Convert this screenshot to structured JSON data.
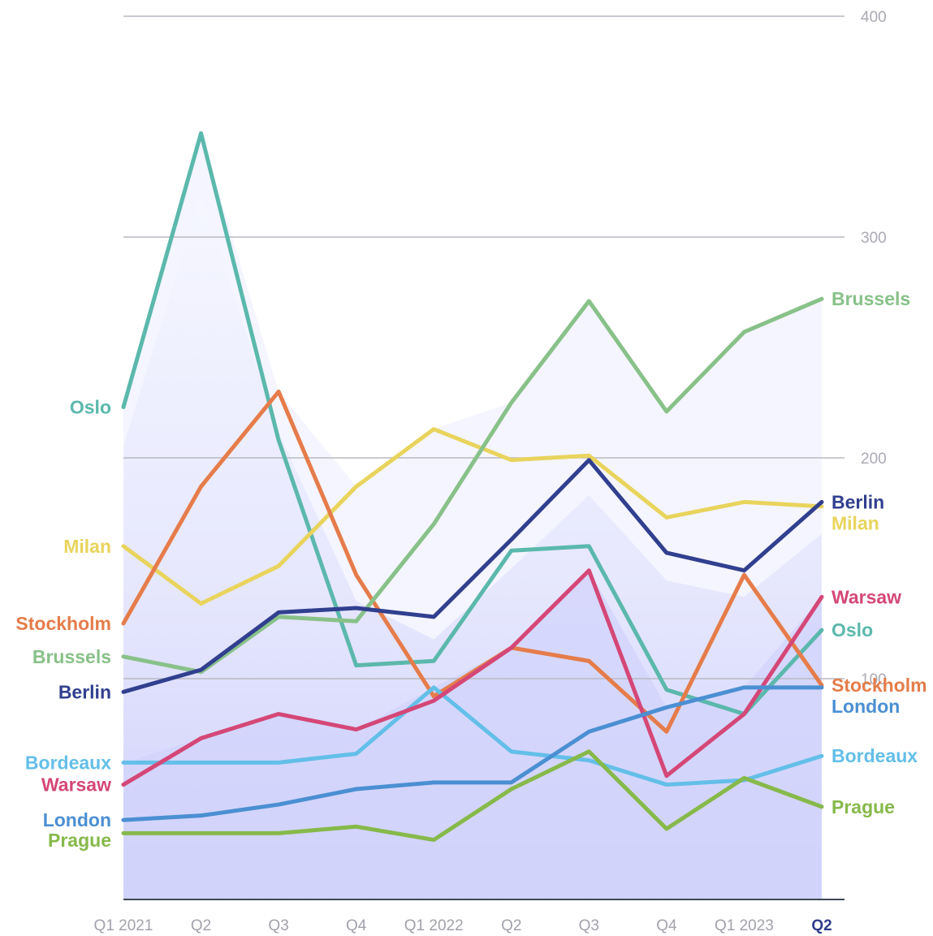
{
  "chart_data": {
    "type": "line",
    "title": "",
    "xlabel": "",
    "ylabel": "",
    "categories": [
      "Q1 2021",
      "Q2",
      "Q3",
      "Q4",
      "Q1 2022",
      "Q2",
      "Q3",
      "Q4",
      "Q1 2023",
      "Q2"
    ],
    "highlighted_category_index": 9,
    "ylim": [
      0,
      400
    ],
    "yticks": [
      "400",
      "300",
      "200",
      "100"
    ],
    "ytick_values": [
      400,
      300,
      200,
      100
    ],
    "grid": true,
    "series": [
      {
        "name": "Oslo",
        "color": "#5bb8ac",
        "values": [
          223,
          347,
          208,
          106,
          108,
          158,
          160,
          95,
          84,
          122
        ]
      },
      {
        "name": "Milan",
        "color": "#e8d45c",
        "values": [
          160,
          134,
          151,
          187,
          213,
          199,
          201,
          173,
          180,
          178
        ]
      },
      {
        "name": "Stockholm",
        "color": "#e57c4a",
        "values": [
          125,
          187,
          230,
          147,
          92,
          114,
          108,
          76,
          147,
          97
        ]
      },
      {
        "name": "Brussels",
        "color": "#88c189",
        "values": [
          110,
          103,
          128,
          126,
          170,
          225,
          271,
          221,
          257,
          272
        ]
      },
      {
        "name": "Berlin",
        "color": "#313f8f",
        "values": [
          94,
          104,
          130,
          132,
          128,
          163,
          199,
          157,
          149,
          180
        ]
      },
      {
        "name": "Bordeaux",
        "color": "#63bfe8",
        "values": [
          62,
          62,
          62,
          66,
          96,
          67,
          63,
          52,
          54,
          65
        ]
      },
      {
        "name": "Warsaw",
        "color": "#d44777",
        "values": [
          52,
          73,
          84,
          77,
          90,
          114,
          149,
          56,
          84,
          137
        ]
      },
      {
        "name": "London",
        "color": "#4b8fd3",
        "values": [
          36,
          38,
          43,
          50,
          53,
          53,
          76,
          87,
          96,
          96
        ]
      },
      {
        "name": "Prague",
        "color": "#86b94a",
        "values": [
          30,
          30,
          30,
          33,
          27,
          50,
          67,
          32,
          55,
          42
        ]
      }
    ],
    "start_labels": [
      {
        "series": "Oslo",
        "text": "Oslo"
      },
      {
        "series": "Milan",
        "text": "Milan"
      },
      {
        "series": "Stockholm",
        "text": "Stockholm"
      },
      {
        "series": "Brussels",
        "text": "Brussels"
      },
      {
        "series": "Berlin",
        "text": "Berlin"
      },
      {
        "series": "Bordeaux",
        "text": "Bordeaux"
      },
      {
        "series": "Warsaw",
        "text": "Warsaw"
      },
      {
        "series": "London",
        "text": "London"
      },
      {
        "series": "Prague",
        "text": "Prague"
      }
    ],
    "end_labels": [
      {
        "series": "Brussels",
        "text": "Brussels"
      },
      {
        "series": "Milan",
        "text": "Milan"
      },
      {
        "series": "Berlin",
        "text": "Berlin"
      },
      {
        "series": "Warsaw",
        "text": "Warsaw"
      },
      {
        "series": "Oslo",
        "text": "Oslo"
      },
      {
        "series": "Stockholm",
        "text": "Stockholm"
      },
      {
        "series": "London",
        "text": "London"
      },
      {
        "series": "Bordeaux",
        "text": "Bordeaux"
      },
      {
        "series": "Prague",
        "text": "Prague"
      }
    ],
    "background_band_color": "#d2d3fb"
  }
}
